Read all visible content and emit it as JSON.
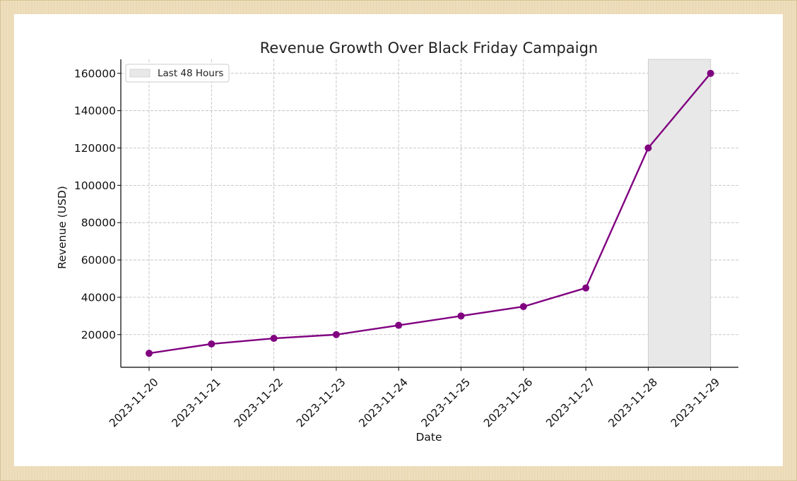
{
  "colors": {
    "line": "#800080",
    "marker": "#800080",
    "highlight_fill": "#e8e8e8",
    "grid": "#bbbbbb"
  },
  "chart_data": {
    "type": "line",
    "title": "Revenue Growth Over Black Friday Campaign",
    "xlabel": "Date",
    "ylabel": "Revenue (USD)",
    "x": [
      "2023-11-20",
      "2023-11-21",
      "2023-11-22",
      "2023-11-23",
      "2023-11-24",
      "2023-11-25",
      "2023-11-26",
      "2023-11-27",
      "2023-11-28",
      "2023-11-29"
    ],
    "series": [
      {
        "values": [
          10000,
          15000,
          18000,
          20000,
          25000,
          30000,
          35000,
          45000,
          120000,
          160000
        ]
      }
    ],
    "y_ticks": [
      20000,
      40000,
      60000,
      80000,
      100000,
      120000,
      140000,
      160000
    ],
    "ylim": [
      2500,
      167500
    ],
    "grid": true,
    "shaded_region": {
      "x_start": "2023-11-28",
      "x_end": "2023-11-29",
      "label": "Last 48 Hours"
    },
    "legend": {
      "position": "top-left",
      "entries": [
        "Last 48 Hours"
      ]
    }
  }
}
